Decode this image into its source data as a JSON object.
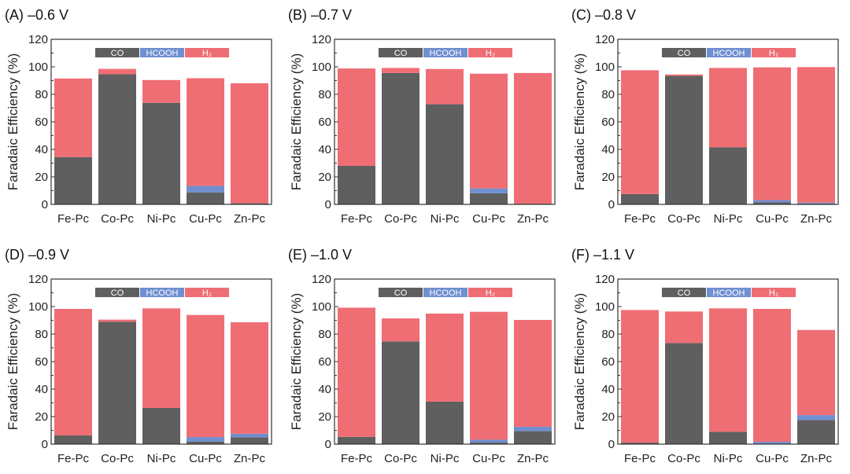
{
  "colors": {
    "CO": "#5f5f5f",
    "HCOOH": "#6f8fd0",
    "H2": "#ef6e74",
    "axis": "#333333"
  },
  "chart_data": {
    "type": "bar",
    "stacked": true,
    "categories": [
      "Fe-Pc",
      "Co-Pc",
      "Ni-Pc",
      "Cu-Pc",
      "Zn-Pc"
    ],
    "ylabel": "Faradaic Efficiency (%)",
    "ylim": [
      0,
      120
    ],
    "yticks": [
      0,
      20,
      40,
      60,
      80,
      100,
      120
    ],
    "legend": {
      "placement": "top-center",
      "entries": [
        {
          "key": "CO",
          "label": "CO"
        },
        {
          "key": "HCOOH",
          "label": "HCOOH"
        },
        {
          "key": "H2",
          "label": "H₂"
        }
      ]
    },
    "panels": [
      {
        "title": "(A) –0.6 V",
        "series": [
          {
            "name": "CO",
            "values": [
              34.4,
              94.6,
              73.8,
              8.7,
              0.8
            ]
          },
          {
            "name": "HCOOH",
            "values": [
              0,
              0,
              0,
              4.7,
              0
            ]
          },
          {
            "name": "H2",
            "values": [
              57.1,
              3.9,
              16.6,
              78.3,
              87.2
            ]
          }
        ]
      },
      {
        "title": "(B) –0.7 V",
        "series": [
          {
            "name": "CO",
            "values": [
              28.0,
              95.5,
              72.8,
              8.1,
              0.5
            ]
          },
          {
            "name": "HCOOH",
            "values": [
              0,
              0,
              0,
              3.5,
              0
            ]
          },
          {
            "name": "H2",
            "values": [
              70.8,
              3.7,
              25.6,
              83.4,
              95.0
            ]
          }
        ]
      },
      {
        "title": "(C) –0.8 V",
        "series": [
          {
            "name": "CO",
            "values": [
              7.5,
              93.4,
              41.5,
              1.4,
              0.7
            ]
          },
          {
            "name": "HCOOH",
            "values": [
              0,
              0,
              0,
              1.7,
              0.6
            ]
          },
          {
            "name": "H2",
            "values": [
              90.0,
              1.0,
              57.7,
              96.5,
              98.5
            ]
          }
        ]
      },
      {
        "title": "(D) –0.9 V",
        "series": [
          {
            "name": "CO",
            "values": [
              6.3,
              89.0,
              26.3,
              1.9,
              5.0
            ]
          },
          {
            "name": "HCOOH",
            "values": [
              0,
              0,
              0,
              3.2,
              2.5
            ]
          },
          {
            "name": "H2",
            "values": [
              92.0,
              1.5,
              72.4,
              88.8,
              81.1
            ]
          }
        ]
      },
      {
        "title": "(E) –1.0 V",
        "series": [
          {
            "name": "CO",
            "values": [
              5.3,
              74.7,
              30.9,
              1.1,
              9.5
            ]
          },
          {
            "name": "HCOOH",
            "values": [
              0,
              0,
              0,
              2.1,
              3.1
            ]
          },
          {
            "name": "H2",
            "values": [
              93.9,
              16.7,
              64.0,
              93.0,
              77.7
            ]
          }
        ]
      },
      {
        "title": "(F) –1.1 V",
        "series": [
          {
            "name": "CO",
            "values": [
              1.1,
              73.5,
              9.0,
              0.5,
              17.5
            ]
          },
          {
            "name": "HCOOH",
            "values": [
              0,
              0,
              0,
              1.2,
              3.6
            ]
          },
          {
            "name": "H2",
            "values": [
              96.4,
              22.9,
              89.7,
              96.6,
              61.9
            ]
          }
        ]
      }
    ]
  }
}
